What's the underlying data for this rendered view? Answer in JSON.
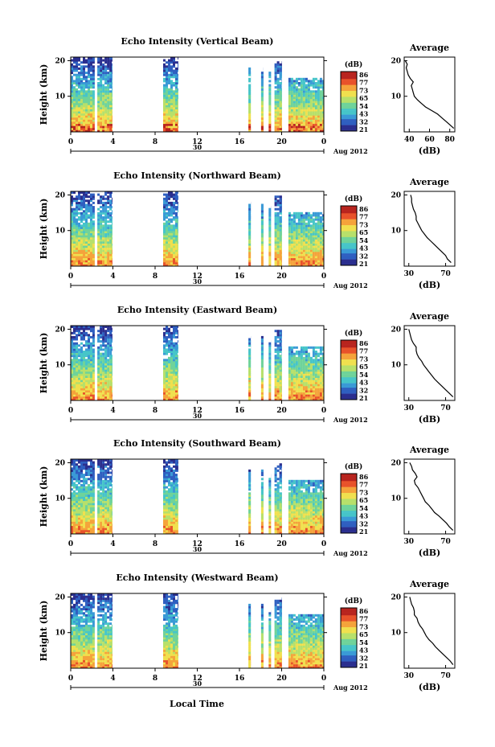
{
  "chart_data": [
    {
      "type": "heatmap",
      "title": "Echo Intensity (Vertical Beam)",
      "ylabel": "Height (km)",
      "y_ticks": [
        "20",
        "10"
      ],
      "x_ticks": [
        "0",
        "4",
        "8",
        "12",
        "16",
        "20",
        "0"
      ],
      "date_label": "30",
      "month_label": "Aug 2012",
      "colorbar_label": "(dB)",
      "colorbar_ticks": [
        "86",
        "77",
        "73",
        "65",
        "54",
        "43",
        "32",
        "21"
      ],
      "profile": {
        "title": "Average",
        "xlabel": "(dB)",
        "x_ticks": [
          "40",
          "60",
          "80"
        ],
        "xlim": [
          35,
          85
        ],
        "y_ticks": [
          "20",
          "10"
        ],
        "heights": [
          1,
          2,
          3,
          4,
          5,
          6,
          7,
          8,
          9,
          10,
          11,
          12,
          13,
          14,
          15,
          16,
          17,
          18,
          19,
          20
        ],
        "values": [
          84,
          80,
          76,
          72,
          68,
          62,
          56,
          52,
          48,
          45,
          44,
          43,
          42,
          44,
          41,
          39,
          38,
          37,
          38,
          36
        ]
      }
    },
    {
      "type": "heatmap",
      "title": "Echo Intensity (Northward Beam)",
      "ylabel": "Height (km)",
      "y_ticks": [
        "20",
        "10"
      ],
      "x_ticks": [
        "0",
        "4",
        "8",
        "12",
        "16",
        "20",
        "0"
      ],
      "date_label": "30",
      "month_label": "Aug 2012",
      "colorbar_label": "(dB)",
      "colorbar_ticks": [
        "86",
        "77",
        "73",
        "65",
        "54",
        "43",
        "32",
        "21"
      ],
      "profile": {
        "title": "Average",
        "xlabel": "(dB)",
        "x_ticks": [
          "30",
          "70"
        ],
        "xlim": [
          25,
          80
        ],
        "y_ticks": [
          "20",
          "10"
        ],
        "heights": [
          1,
          2,
          3,
          4,
          5,
          6,
          7,
          8,
          9,
          10,
          11,
          12,
          13,
          14,
          15,
          16,
          17,
          18,
          19,
          20
        ],
        "values": [
          76,
          72,
          70,
          66,
          62,
          58,
          54,
          50,
          47,
          44,
          42,
          40,
          38,
          38,
          37,
          35,
          34,
          33,
          33,
          32
        ]
      }
    },
    {
      "type": "heatmap",
      "title": "Echo Intensity (Eastward Beam)",
      "ylabel": "Height (km)",
      "y_ticks": [
        "20",
        "10"
      ],
      "x_ticks": [
        "0",
        "4",
        "8",
        "12",
        "16",
        "20",
        "0"
      ],
      "date_label": "30",
      "month_label": "Aug 2012",
      "colorbar_label": "(dB)",
      "colorbar_ticks": [
        "86",
        "77",
        "73",
        "65",
        "54",
        "43",
        "32",
        "21"
      ],
      "profile": {
        "title": "Average",
        "xlabel": "(dB)",
        "x_ticks": [
          "30",
          "70"
        ],
        "xlim": [
          25,
          80
        ],
        "y_ticks": [
          "20",
          "10"
        ],
        "heights": [
          1,
          2,
          3,
          4,
          5,
          6,
          7,
          8,
          9,
          10,
          11,
          12,
          13,
          14,
          15,
          16,
          17,
          18,
          19,
          20
        ],
        "values": [
          78,
          74,
          70,
          66,
          62,
          58,
          55,
          52,
          49,
          46,
          44,
          41,
          39,
          38,
          38,
          35,
          33,
          32,
          31,
          30
        ]
      }
    },
    {
      "type": "heatmap",
      "title": "Echo Intensity (Southward Beam)",
      "ylabel": "Height (km)",
      "y_ticks": [
        "20",
        "10"
      ],
      "x_ticks": [
        "0",
        "4",
        "8",
        "12",
        "16",
        "20",
        "0"
      ],
      "date_label": "30",
      "month_label": "Aug 2012",
      "colorbar_label": "(dB)",
      "colorbar_ticks": [
        "86",
        "77",
        "73",
        "65",
        "54",
        "43",
        "32",
        "21"
      ],
      "profile": {
        "title": "Average",
        "xlabel": "(dB)",
        "x_ticks": [
          "30",
          "70"
        ],
        "xlim": [
          25,
          80
        ],
        "y_ticks": [
          "20",
          "10"
        ],
        "heights": [
          1,
          2,
          3,
          4,
          5,
          6,
          7,
          8,
          9,
          10,
          11,
          12,
          13,
          14,
          15,
          16,
          17,
          18,
          19,
          20
        ],
        "values": [
          78,
          74,
          71,
          67,
          63,
          58,
          55,
          52,
          48,
          46,
          44,
          42,
          40,
          37,
          36,
          39,
          37,
          34,
          33,
          31
        ]
      }
    },
    {
      "type": "heatmap",
      "title": "Echo Intensity (Westward Beam)",
      "ylabel": "Height (km)",
      "y_ticks": [
        "20",
        "10"
      ],
      "x_ticks": [
        "0",
        "4",
        "8",
        "12",
        "16",
        "20",
        "0"
      ],
      "date_label": "30",
      "month_label": "Aug 2012",
      "colorbar_label": "(dB)",
      "colorbar_ticks": [
        "86",
        "77",
        "73",
        "65",
        "54",
        "43",
        "32",
        "21"
      ],
      "profile": {
        "title": "Average",
        "xlabel": "(dB)",
        "x_ticks": [
          "30",
          "70"
        ],
        "xlim": [
          25,
          80
        ],
        "y_ticks": [
          "20",
          "10"
        ],
        "heights": [
          1,
          2,
          3,
          4,
          5,
          6,
          7,
          8,
          9,
          10,
          11,
          12,
          13,
          14,
          15,
          16,
          17,
          18,
          19,
          20
        ],
        "values": [
          78,
          75,
          71,
          67,
          63,
          59,
          56,
          52,
          49,
          47,
          45,
          42,
          40,
          39,
          36,
          36,
          35,
          33,
          32,
          31
        ]
      }
    }
  ],
  "footer": {
    "xlabel": "Local Time"
  },
  "colormap": [
    "#2b2f8f",
    "#2f5fc0",
    "#3a9ad6",
    "#46c5c9",
    "#6fd39a",
    "#b7e06a",
    "#f0e04e",
    "#f5a33b",
    "#e8522a",
    "#b8241e"
  ]
}
